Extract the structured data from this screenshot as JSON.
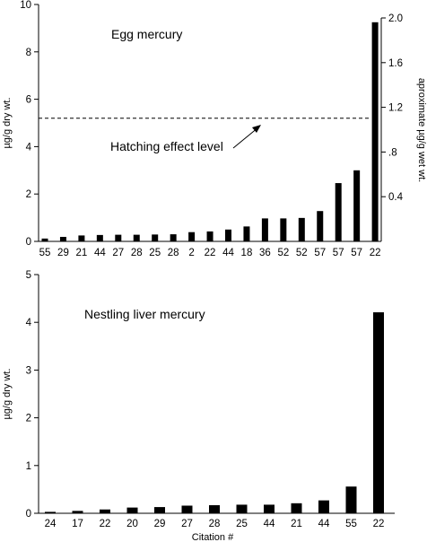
{
  "chart_data": [
    {
      "type": "bar",
      "title": "Egg mercury",
      "ylabel": "µg/g dry wt.",
      "y2label": "aproximate µg/g wet wt.",
      "ylim": [
        0,
        10
      ],
      "yticks": [
        "0",
        "2",
        "4",
        "6",
        "8",
        "10"
      ],
      "y2lim": [
        0,
        2.0
      ],
      "y2ticks": [
        "0.4",
        ".8",
        "1.2",
        "1.6",
        "2.0"
      ],
      "categories": [
        "55",
        "29",
        "21",
        "44",
        "27",
        "28",
        "25",
        "28",
        "2",
        "22",
        "44",
        "18",
        "36",
        "52",
        "52",
        "57",
        "57",
        "57",
        "22"
      ],
      "values": [
        0.12,
        0.19,
        0.25,
        0.27,
        0.28,
        0.28,
        0.29,
        0.3,
        0.39,
        0.42,
        0.5,
        0.63,
        0.97,
        0.97,
        0.99,
        1.28,
        2.46,
        3.0,
        9.25
      ],
      "reference_line": {
        "value": 5.2,
        "style": "dashed",
        "label": "Hatching effect level"
      },
      "grid": false
    },
    {
      "type": "bar",
      "title": "Nestling liver mercury",
      "ylabel": "µg/g dry wt.",
      "xlabel": "Citation #",
      "ylim": [
        0,
        5
      ],
      "yticks": [
        "0",
        "1",
        "2",
        "3",
        "4",
        "5"
      ],
      "categories": [
        "24",
        "17",
        "22",
        "20",
        "29",
        "27",
        "28",
        "25",
        "44",
        "21",
        "44",
        "55",
        "22"
      ],
      "values": [
        0.03,
        0.05,
        0.08,
        0.12,
        0.13,
        0.16,
        0.17,
        0.18,
        0.18,
        0.21,
        0.27,
        0.56,
        4.21
      ],
      "grid": false
    }
  ]
}
